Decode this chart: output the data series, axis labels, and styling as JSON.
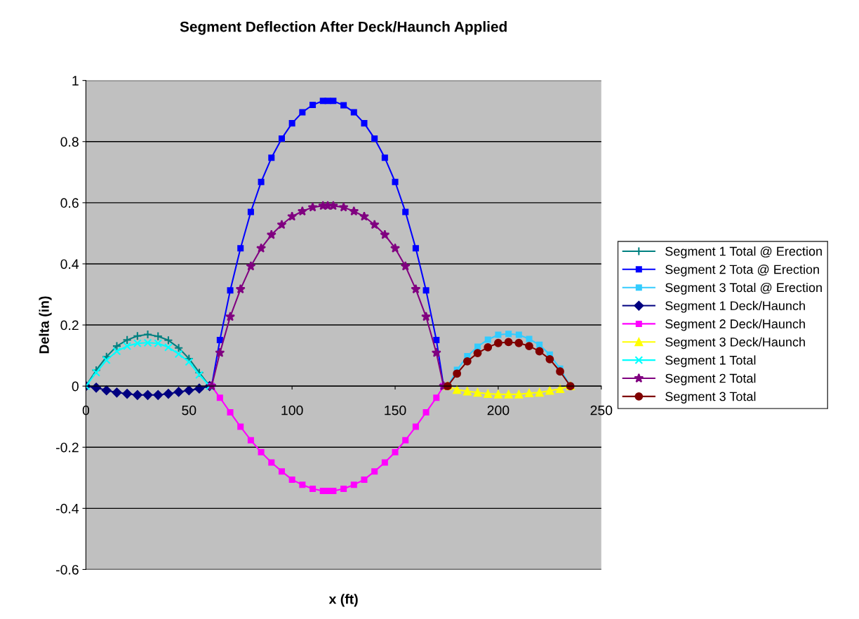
{
  "chart_data": {
    "type": "line",
    "title": "Segment Deflection After Deck/Haunch Applied",
    "xlabel": "x (ft)",
    "ylabel": "Delta (in)",
    "xlim": [
      0,
      250
    ],
    "xticks": [
      0,
      50,
      100,
      150,
      200,
      250
    ],
    "ylim": [
      -0.6,
      1
    ],
    "yticks": [
      -0.6,
      -0.4,
      -0.2,
      0,
      0.2,
      0.4,
      0.6,
      0.8,
      1
    ],
    "grid": "y",
    "legend": "right",
    "series": [
      {
        "name": "Segment 1 Total @ Erection",
        "color": "#008080",
        "marker": "plus",
        "x": [
          0,
          5,
          10,
          15,
          20,
          25,
          30,
          35,
          40,
          45,
          50,
          55,
          60
        ],
        "values": [
          0,
          0.052,
          0.096,
          0.131,
          0.151,
          0.164,
          0.169,
          0.163,
          0.15,
          0.125,
          0.09,
          0.044,
          0
        ]
      },
      {
        "name": "Segment 2 Tota @ Erection",
        "color": "#0000ff",
        "marker": "square",
        "x": [
          61,
          65,
          70,
          75,
          80,
          85,
          90,
          95,
          100,
          105,
          110,
          115,
          117.3,
          120,
          125,
          130,
          135,
          140,
          145,
          150,
          155,
          160,
          165,
          170,
          173.5
        ],
        "values": [
          0,
          0.151,
          0.313,
          0.451,
          0.57,
          0.668,
          0.747,
          0.81,
          0.86,
          0.896,
          0.92,
          0.933,
          0.933,
          0.933,
          0.919,
          0.896,
          0.86,
          0.81,
          0.747,
          0.668,
          0.57,
          0.451,
          0.313,
          0.151,
          0
        ]
      },
      {
        "name": "Segment 3 Total @ Erection",
        "color": "#33ccff",
        "marker": "square",
        "x": [
          175.5,
          180,
          185,
          190,
          195,
          200,
          205,
          210,
          215,
          220,
          225,
          230,
          235
        ],
        "values": [
          0,
          0.053,
          0.098,
          0.129,
          0.152,
          0.168,
          0.171,
          0.168,
          0.154,
          0.135,
          0.103,
          0.057,
          0
        ]
      },
      {
        "name": "Segment 1 Deck/Haunch",
        "color": "#000080",
        "marker": "diamond",
        "x": [
          0,
          5,
          10,
          15,
          20,
          25,
          30,
          35,
          40,
          45,
          50,
          55,
          60
        ],
        "values": [
          0,
          -0.005,
          -0.014,
          -0.021,
          -0.025,
          -0.029,
          -0.029,
          -0.029,
          -0.025,
          -0.019,
          -0.014,
          -0.008,
          0
        ]
      },
      {
        "name": "Segment 2 Deck/Haunch",
        "color": "#ff00ff",
        "marker": "square",
        "x": [
          61,
          65,
          70,
          75,
          80,
          85,
          90,
          95,
          100,
          105,
          110,
          115,
          117.3,
          120,
          125,
          130,
          135,
          140,
          145,
          150,
          155,
          160,
          165,
          170,
          173.5
        ],
        "values": [
          0,
          -0.038,
          -0.086,
          -0.133,
          -0.177,
          -0.216,
          -0.25,
          -0.279,
          -0.306,
          -0.323,
          -0.336,
          -0.343,
          -0.343,
          -0.343,
          -0.336,
          -0.323,
          -0.306,
          -0.279,
          -0.25,
          -0.216,
          -0.177,
          -0.133,
          -0.086,
          -0.038,
          0
        ]
      },
      {
        "name": "Segment 3 Deck/Haunch",
        "color": "#ffff00",
        "marker": "triangle",
        "x": [
          175.5,
          180,
          185,
          190,
          195,
          200,
          205,
          210,
          215,
          220,
          225,
          230,
          235
        ],
        "values": [
          0,
          -0.012,
          -0.017,
          -0.021,
          -0.025,
          -0.027,
          -0.027,
          -0.027,
          -0.023,
          -0.021,
          -0.015,
          -0.009,
          0
        ]
      },
      {
        "name": "Segment 1 Total",
        "color": "#00ffff",
        "marker": "cross",
        "x": [
          0,
          5,
          10,
          15,
          20,
          25,
          30,
          35,
          40,
          45,
          50,
          55,
          60
        ],
        "values": [
          0,
          0.044,
          0.085,
          0.114,
          0.131,
          0.14,
          0.142,
          0.14,
          0.127,
          0.105,
          0.079,
          0.037,
          0
        ]
      },
      {
        "name": "Segment 2 Total",
        "color": "#800080",
        "marker": "star",
        "x": [
          61,
          65,
          70,
          75,
          80,
          85,
          90,
          95,
          100,
          105,
          110,
          115,
          117.3,
          120,
          125,
          130,
          135,
          140,
          145,
          150,
          155,
          160,
          165,
          170,
          173.5
        ],
        "values": [
          0,
          0.109,
          0.227,
          0.317,
          0.392,
          0.451,
          0.495,
          0.528,
          0.555,
          0.572,
          0.585,
          0.59,
          0.59,
          0.59,
          0.585,
          0.572,
          0.555,
          0.528,
          0.495,
          0.451,
          0.392,
          0.317,
          0.227,
          0.109,
          0
        ]
      },
      {
        "name": "Segment 3 Total",
        "color": "#800000",
        "marker": "circle",
        "x": [
          175.5,
          180,
          185,
          190,
          195,
          200,
          205,
          210,
          215,
          220,
          225,
          230,
          235
        ],
        "values": [
          0,
          0.041,
          0.081,
          0.108,
          0.127,
          0.141,
          0.144,
          0.141,
          0.131,
          0.114,
          0.088,
          0.048,
          0
        ]
      }
    ]
  }
}
